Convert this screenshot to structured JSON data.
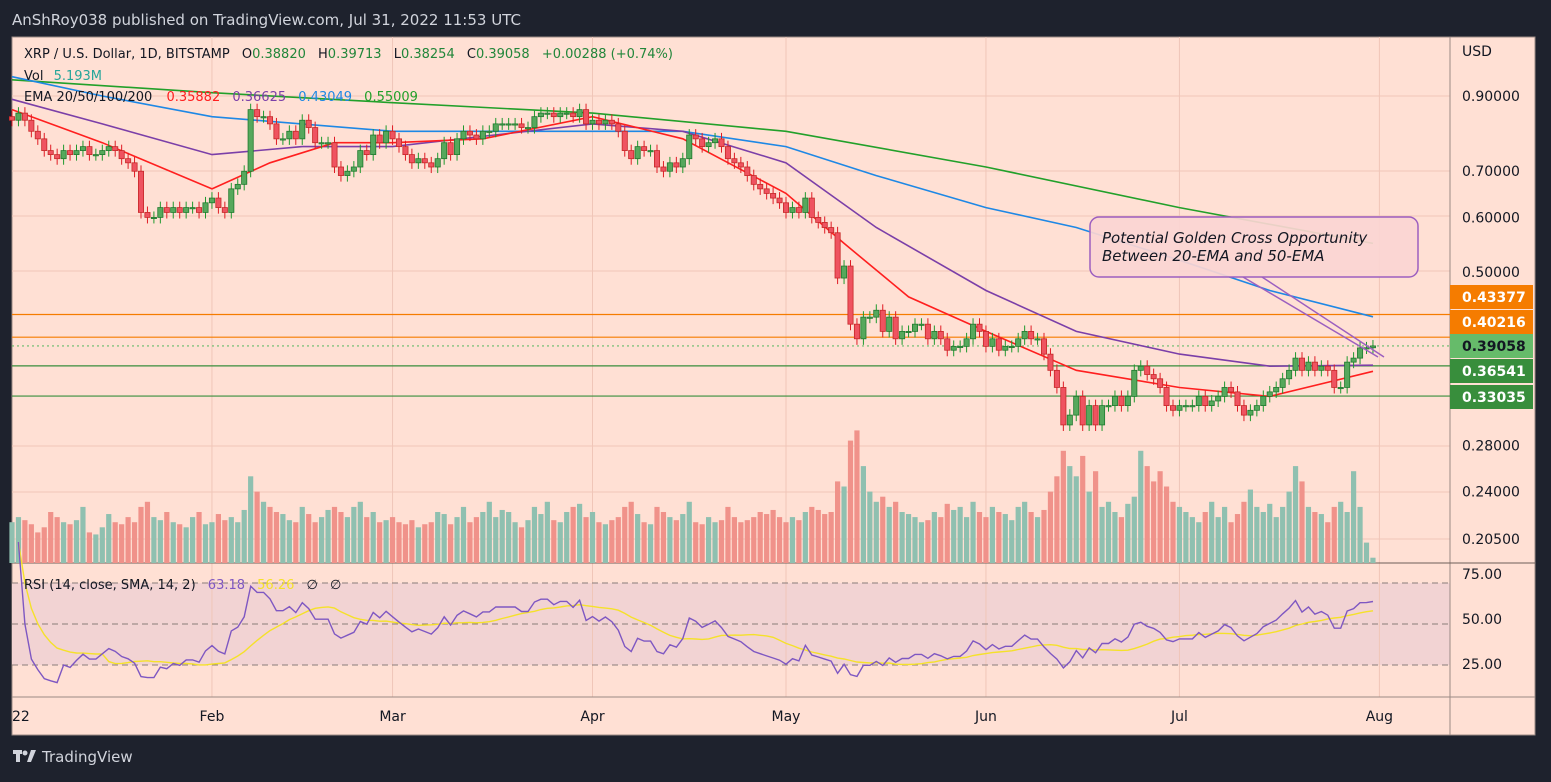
{
  "publisher_line": "AnShRoy038 published on TradingView.com, Jul 31, 2022 11:53 UTC",
  "footer_logo": "TradingView",
  "legend": {
    "symbol": "XRP / U.S. Dollar, 1D, BITSTAMP",
    "open_label": "O",
    "open": "0.38820",
    "high_label": "H",
    "high": "0.39713",
    "low_label": "L",
    "low": "0.38254",
    "close_label": "C",
    "close": "0.39058",
    "change": "+0.00288 (+0.74%)",
    "vol_label": "Vol",
    "vol_value": "5.193M",
    "ema_label": "EMA 20/50/100/200",
    "ema20": "0.35882",
    "ema50": "0.36625",
    "ema100": "0.43049",
    "ema200": "0.55009",
    "rsi_label": "RSI (14, close, SMA, 14, 2)",
    "rsi_value": "63.18",
    "rsi_sma_value": "56.26",
    "rsi_extra1": "∅",
    "rsi_extra2": "∅"
  },
  "annotation": {
    "line1": "Potential Golden Cross Opportunity",
    "line2": "Between 20-EMA and 50-EMA"
  },
  "price_axis": {
    "currency": "USD",
    "ticks": [
      "0.90000",
      "0.70000",
      "0.60000",
      "0.50000",
      "0.28000",
      "0.24000",
      "0.20500"
    ],
    "tags": [
      {
        "label": "0.43377",
        "color": "#f57c00",
        "text_color": "#ffffff",
        "line": "solid"
      },
      {
        "label": "0.40216",
        "color": "#f57c00",
        "text_color": "#ffffff",
        "line": "solid"
      },
      {
        "label": "0.39058",
        "color": "#66bb6a",
        "text_color": "#131722",
        "line": "dotted"
      },
      {
        "label": "0.36541",
        "color": "#388e3c",
        "text_color": "#ffffff",
        "line": "solid"
      },
      {
        "label": "0.33035",
        "color": "#388e3c",
        "text_color": "#ffffff",
        "line": "solid"
      }
    ]
  },
  "rsi_axis": {
    "ticks": [
      "75.00",
      "50.00",
      "25.00"
    ]
  },
  "time_axis": {
    "ticks": [
      "22",
      "Feb",
      "Mar",
      "Apr",
      "May",
      "Jun",
      "Jul",
      "Aug"
    ]
  },
  "colors": {
    "background": "#ffe0d4",
    "up": "#56a85c",
    "up_border": "#1f7a2e",
    "down": "#ef5360",
    "down_border": "#c62828",
    "vol_up": "#8fc0b0",
    "vol_down": "#f0928a",
    "ema20": "#ff1f1f",
    "ema50": "#7b3fa8",
    "ema100": "#1e88e5",
    "ema200": "#22a02a",
    "rsi": "#7e57c2",
    "rsi_sma": "#f5e12a",
    "rsi_band": "#f2d3d3"
  },
  "chart_data": {
    "type": "candlestick",
    "scale": "log",
    "ylim": [
      0.2,
      1.0
    ],
    "x_range": [
      "2022-01-01",
      "2022-07-31"
    ],
    "close": [
      0.83,
      0.85,
      0.83,
      0.8,
      0.78,
      0.75,
      0.74,
      0.73,
      0.75,
      0.74,
      0.75,
      0.76,
      0.74,
      0.74,
      0.75,
      0.76,
      0.75,
      0.73,
      0.72,
      0.7,
      0.61,
      0.6,
      0.6,
      0.62,
      0.61,
      0.62,
      0.61,
      0.62,
      0.62,
      0.61,
      0.63,
      0.64,
      0.62,
      0.61,
      0.66,
      0.67,
      0.7,
      0.86,
      0.84,
      0.84,
      0.82,
      0.78,
      0.78,
      0.8,
      0.78,
      0.83,
      0.81,
      0.77,
      0.77,
      0.77,
      0.71,
      0.69,
      0.7,
      0.71,
      0.75,
      0.74,
      0.79,
      0.77,
      0.8,
      0.78,
      0.76,
      0.74,
      0.72,
      0.73,
      0.72,
      0.71,
      0.73,
      0.77,
      0.74,
      0.78,
      0.8,
      0.79,
      0.78,
      0.8,
      0.8,
      0.82,
      0.82,
      0.82,
      0.82,
      0.81,
      0.81,
      0.84,
      0.85,
      0.85,
      0.84,
      0.85,
      0.85,
      0.84,
      0.86,
      0.82,
      0.83,
      0.82,
      0.83,
      0.82,
      0.8,
      0.75,
      0.73,
      0.76,
      0.75,
      0.75,
      0.71,
      0.7,
      0.72,
      0.71,
      0.73,
      0.79,
      0.78,
      0.76,
      0.77,
      0.78,
      0.76,
      0.73,
      0.72,
      0.71,
      0.69,
      0.67,
      0.66,
      0.65,
      0.64,
      0.63,
      0.61,
      0.62,
      0.61,
      0.64,
      0.6,
      0.59,
      0.58,
      0.57,
      0.49,
      0.51,
      0.42,
      0.4,
      0.43,
      0.43,
      0.44,
      0.41,
      0.43,
      0.4,
      0.41,
      0.41,
      0.42,
      0.42,
      0.4,
      0.41,
      0.4,
      0.385,
      0.39,
      0.39,
      0.4,
      0.42,
      0.41,
      0.39,
      0.4,
      0.385,
      0.39,
      0.39,
      0.4,
      0.41,
      0.4,
      0.4,
      0.38,
      0.36,
      0.34,
      0.3,
      0.31,
      0.33,
      0.3,
      0.32,
      0.3,
      0.32,
      0.32,
      0.33,
      0.32,
      0.33,
      0.36,
      0.365,
      0.355,
      0.35,
      0.34,
      0.32,
      0.315,
      0.32,
      0.32,
      0.32,
      0.33,
      0.32,
      0.325,
      0.33,
      0.34,
      0.335,
      0.32,
      0.31,
      0.315,
      0.32,
      0.33,
      0.335,
      0.34,
      0.35,
      0.36,
      0.375,
      0.36,
      0.37,
      0.36,
      0.365,
      0.36,
      0.34,
      0.34,
      0.37,
      0.375,
      0.388,
      0.3882,
      0.39058
    ],
    "last_open": 0.3882,
    "volume_m": [
      40,
      45,
      42,
      38,
      30,
      35,
      50,
      45,
      40,
      38,
      42,
      55,
      30,
      28,
      35,
      48,
      40,
      38,
      45,
      40,
      55,
      60,
      45,
      42,
      50,
      40,
      38,
      35,
      45,
      50,
      38,
      40,
      48,
      42,
      45,
      40,
      52,
      85,
      70,
      60,
      55,
      50,
      48,
      42,
      40,
      55,
      48,
      40,
      45,
      52,
      55,
      50,
      45,
      55,
      60,
      45,
      50,
      40,
      42,
      45,
      40,
      38,
      42,
      35,
      38,
      40,
      50,
      48,
      38,
      45,
      55,
      40,
      45,
      50,
      60,
      45,
      52,
      50,
      40,
      35,
      42,
      55,
      48,
      60,
      42,
      40,
      50,
      55,
      58,
      45,
      50,
      40,
      38,
      42,
      45,
      55,
      60,
      48,
      40,
      38,
      55,
      50,
      45,
      42,
      48,
      60,
      40,
      38,
      45,
      40,
      42,
      55,
      45,
      40,
      42,
      45,
      50,
      48,
      52,
      45,
      40,
      45,
      42,
      50,
      55,
      52,
      48,
      50,
      80,
      75,
      120,
      130,
      95,
      70,
      60,
      65,
      55,
      60,
      50,
      48,
      45,
      40,
      42,
      50,
      45,
      58,
      52,
      55,
      45,
      60,
      50,
      45,
      55,
      50,
      48,
      42,
      55,
      60,
      50,
      45,
      52,
      70,
      85,
      110,
      95,
      85,
      105,
      70,
      90,
      55,
      60,
      50,
      45,
      58,
      65,
      110,
      95,
      80,
      90,
      75,
      60,
      55,
      50,
      45,
      40,
      50,
      60,
      45,
      55,
      40,
      48,
      60,
      72,
      55,
      50,
      58,
      45,
      55,
      70,
      95,
      80,
      55,
      50,
      48,
      40,
      55,
      60,
      50,
      90,
      55,
      20,
      5.193
    ],
    "ema": {
      "ema20": [
        [
          "2022-01-01",
          0.86
        ],
        [
          "2022-01-15",
          0.77
        ],
        [
          "2022-02-01",
          0.66
        ],
        [
          "2022-02-10",
          0.72
        ],
        [
          "2022-02-20",
          0.77
        ],
        [
          "2022-03-01",
          0.77
        ],
        [
          "2022-03-15",
          0.78
        ],
        [
          "2022-04-01",
          0.84
        ],
        [
          "2022-04-15",
          0.78
        ],
        [
          "2022-05-01",
          0.65
        ],
        [
          "2022-05-10",
          0.55
        ],
        [
          "2022-05-20",
          0.46
        ],
        [
          "2022-06-01",
          0.41
        ],
        [
          "2022-06-15",
          0.36
        ],
        [
          "2022-07-01",
          0.34
        ],
        [
          "2022-07-15",
          0.33
        ],
        [
          "2022-07-31",
          0.35882
        ]
      ],
      "ema50": [
        [
          "2022-01-01",
          0.89
        ],
        [
          "2022-01-15",
          0.82
        ],
        [
          "2022-02-01",
          0.74
        ],
        [
          "2022-02-15",
          0.76
        ],
        [
          "2022-03-01",
          0.76
        ],
        [
          "2022-04-01",
          0.82
        ],
        [
          "2022-04-15",
          0.8
        ],
        [
          "2022-05-01",
          0.72
        ],
        [
          "2022-05-15",
          0.58
        ],
        [
          "2022-06-01",
          0.47
        ],
        [
          "2022-06-15",
          0.41
        ],
        [
          "2022-07-01",
          0.38
        ],
        [
          "2022-07-15",
          0.365
        ],
        [
          "2022-07-31",
          0.36625
        ]
      ],
      "ema100": [
        [
          "2022-01-01",
          0.96
        ],
        [
          "2022-01-15",
          0.9
        ],
        [
          "2022-02-01",
          0.84
        ],
        [
          "2022-03-01",
          0.8
        ],
        [
          "2022-04-01",
          0.8
        ],
        [
          "2022-04-15",
          0.8
        ],
        [
          "2022-05-01",
          0.76
        ],
        [
          "2022-05-15",
          0.69
        ],
        [
          "2022-06-01",
          0.62
        ],
        [
          "2022-06-15",
          0.58
        ],
        [
          "2022-07-01",
          0.52
        ],
        [
          "2022-07-15",
          0.47
        ],
        [
          "2022-07-31",
          0.43049
        ]
      ],
      "ema200": [
        [
          "2022-01-01",
          0.95
        ],
        [
          "2022-02-01",
          0.91
        ],
        [
          "2022-03-01",
          0.88
        ],
        [
          "2022-04-01",
          0.85
        ],
        [
          "2022-05-01",
          0.8
        ],
        [
          "2022-06-01",
          0.71
        ],
        [
          "2022-07-01",
          0.62
        ],
        [
          "2022-07-31",
          0.55009
        ]
      ]
    },
    "rsi_ylim": [
      0,
      100
    ]
  }
}
